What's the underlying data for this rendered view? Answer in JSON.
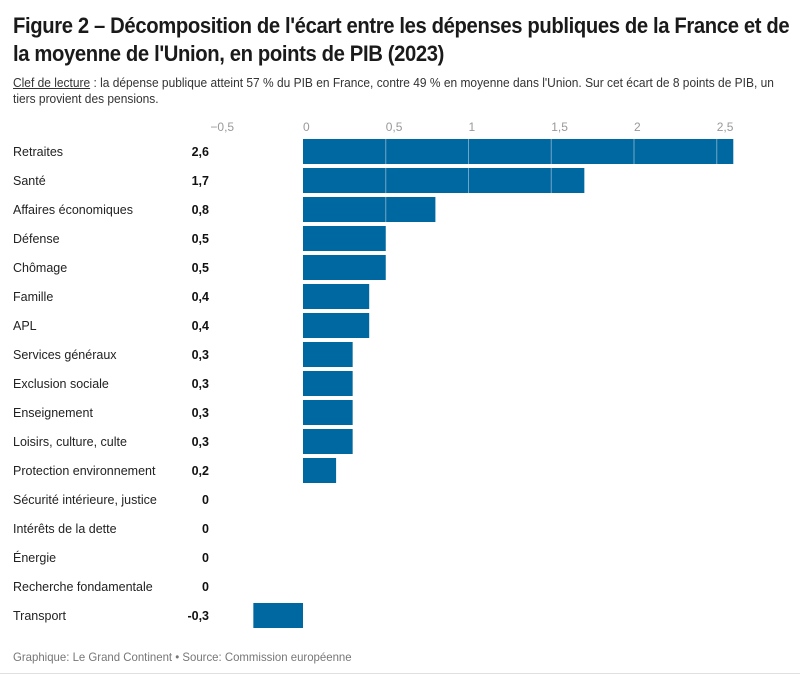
{
  "header": {
    "title": "Figure 2 – Décomposition de l'écart entre les dépenses publiques de la France et de la moyenne de l'Union, en points de PIB (2023)",
    "reading_key_label": "Clef de lecture",
    "reading_key_text": " : la dépense publique atteint 57 % du PIB en France, contre 49 % en moyenne dans l'Union. Sur cet écart de 8 points de PIB, un tiers provient des pensions."
  },
  "footer": {
    "credit": "Graphique: Le Grand Continent • Source: Commission européenne"
  },
  "colors": {
    "bar": "#0068a1",
    "gridline_on_bar": "#6fa6c8"
  },
  "chart_data": {
    "type": "bar",
    "orientation": "horizontal",
    "title": "Figure 2 – Décomposition de l'écart entre les dépenses publiques de la France et de la moyenne de l'Union, en points de PIB (2023)",
    "xlabel": "",
    "ylabel": "",
    "xlim": [
      -0.5,
      2.6
    ],
    "x_ticks": [
      -0.5,
      0,
      0.5,
      1,
      1.5,
      2,
      2.5
    ],
    "x_tick_labels": [
      "−0,5",
      "0",
      "0,5",
      "1",
      "1,5",
      "2",
      "2,5"
    ],
    "grid": "vertical lines shown over bars",
    "legend": "none",
    "categories": [
      "Retraites",
      "Santé",
      "Affaires économiques",
      "Défense",
      "Chômage",
      "Famille",
      "APL",
      "Services généraux",
      "Exclusion sociale",
      "Enseignement",
      "Loisirs, culture, culte",
      "Protection environnement",
      "Sécurité intérieure, justice",
      "Intérêts de la dette",
      "Énergie",
      "Recherche fondamentale",
      "Transport"
    ],
    "values": [
      2.6,
      1.7,
      0.8,
      0.5,
      0.5,
      0.4,
      0.4,
      0.3,
      0.3,
      0.3,
      0.3,
      0.2,
      0,
      0,
      0,
      0,
      -0.3
    ],
    "value_labels": [
      "2,6",
      "1,7",
      "0,8",
      "0,5",
      "0,5",
      "0,4",
      "0,4",
      "0,3",
      "0,3",
      "0,3",
      "0,3",
      "0,2",
      "0",
      "0",
      "0",
      "0",
      "-0,3"
    ]
  }
}
